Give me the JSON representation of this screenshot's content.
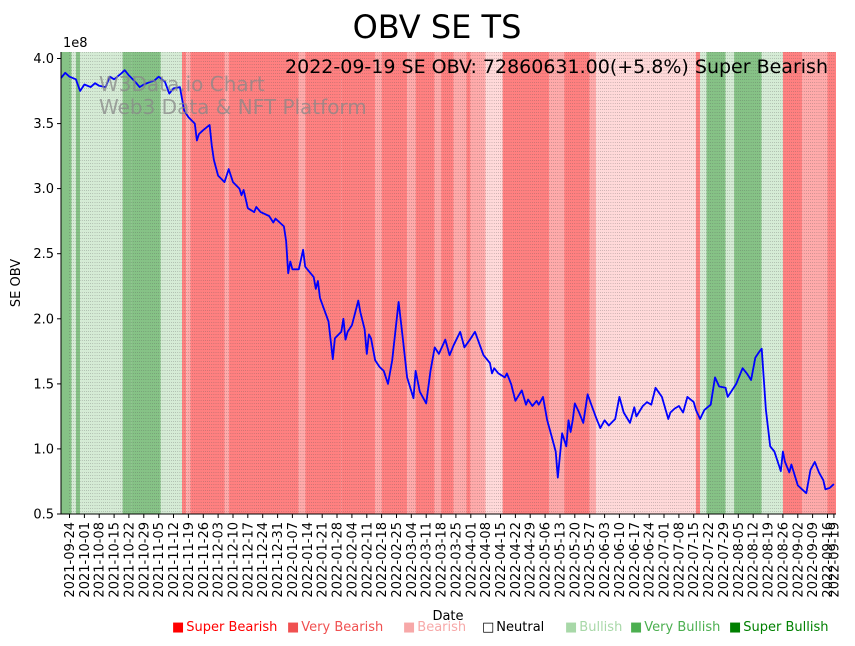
{
  "chart_data": {
    "type": "line",
    "title": "OBV SE TS",
    "annotation": "2022-09-19 SE OBV: 72860631.00(+5.8%) Super Bearish",
    "watermark": [
      "W3Data.io Chart",
      "Web3 Data & NFT Platform"
    ],
    "xlabel": "Date",
    "ylabel": "SE OBV",
    "y_multiplier_label": "1e8",
    "ylim": [
      0.5,
      4.05
    ],
    "yticks": [
      "0.5",
      "1.0",
      "1.5",
      "2.0",
      "2.5",
      "3.0",
      "3.5",
      "4.0"
    ],
    "xlim": [
      "2021-09-20",
      "2022-09-20"
    ],
    "xticks": [
      "2021-09-24",
      "2021-10-01",
      "2021-10-08",
      "2021-10-15",
      "2021-10-22",
      "2021-10-29",
      "2021-11-05",
      "2021-11-12",
      "2021-11-19",
      "2021-11-26",
      "2021-12-03",
      "2021-12-10",
      "2021-12-17",
      "2021-12-24",
      "2021-12-31",
      "2022-01-07",
      "2022-01-14",
      "2022-01-21",
      "2022-01-28",
      "2022-02-04",
      "2022-02-11",
      "2022-02-18",
      "2022-02-25",
      "2022-03-04",
      "2022-03-11",
      "2022-03-18",
      "2022-03-25",
      "2022-04-01",
      "2022-04-08",
      "2022-04-15",
      "2022-04-22",
      "2022-04-29",
      "2022-05-06",
      "2022-05-13",
      "2022-05-20",
      "2022-05-27",
      "2022-06-03",
      "2022-06-10",
      "2022-06-17",
      "2022-06-24",
      "2022-07-01",
      "2022-07-08",
      "2022-07-15",
      "2022-07-22",
      "2022-07-29",
      "2022-08-05",
      "2022-08-12",
      "2022-08-19",
      "2022-08-26",
      "2022-09-02",
      "2022-09-09",
      "2022-09-16",
      "2022-09-19"
    ],
    "grid": "vertical dotted",
    "series": [
      {
        "color": "#0000ff",
        "points": [
          [
            "2021-09-20",
            3.85
          ],
          [
            "2021-09-22",
            3.89
          ],
          [
            "2021-09-24",
            3.86
          ],
          [
            "2021-09-27",
            3.84
          ],
          [
            "2021-09-29",
            3.75
          ],
          [
            "2021-10-01",
            3.8
          ],
          [
            "2021-10-04",
            3.78
          ],
          [
            "2021-10-06",
            3.81
          ],
          [
            "2021-10-08",
            3.79
          ],
          [
            "2021-10-11",
            3.78
          ],
          [
            "2021-10-13",
            3.86
          ],
          [
            "2021-10-15",
            3.84
          ],
          [
            "2021-10-18",
            3.88
          ],
          [
            "2021-10-20",
            3.91
          ],
          [
            "2021-10-22",
            3.87
          ],
          [
            "2021-10-25",
            3.82
          ],
          [
            "2021-10-27",
            3.78
          ],
          [
            "2021-10-29",
            3.8
          ],
          [
            "2021-11-01",
            3.82
          ],
          [
            "2021-11-03",
            3.83
          ],
          [
            "2021-11-05",
            3.86
          ],
          [
            "2021-11-08",
            3.82
          ],
          [
            "2021-11-10",
            3.73
          ],
          [
            "2021-11-12",
            3.77
          ],
          [
            "2021-11-15",
            3.78
          ],
          [
            "2021-11-17",
            3.6
          ],
          [
            "2021-11-19",
            3.55
          ],
          [
            "2021-11-22",
            3.5
          ],
          [
            "2021-11-23",
            3.37
          ],
          [
            "2021-11-24",
            3.42
          ],
          [
            "2021-11-26",
            3.45
          ],
          [
            "2021-11-29",
            3.49
          ],
          [
            "2021-11-30",
            3.33
          ],
          [
            "2021-12-01",
            3.22
          ],
          [
            "2021-12-03",
            3.1
          ],
          [
            "2021-12-06",
            3.05
          ],
          [
            "2021-12-08",
            3.15
          ],
          [
            "2021-12-10",
            3.05
          ],
          [
            "2021-12-13",
            3.0
          ],
          [
            "2021-12-14",
            2.95
          ],
          [
            "2021-12-15",
            2.99
          ],
          [
            "2021-12-17",
            2.85
          ],
          [
            "2021-12-20",
            2.82
          ],
          [
            "2021-12-21",
            2.86
          ],
          [
            "2021-12-23",
            2.82
          ],
          [
            "2021-12-27",
            2.79
          ],
          [
            "2021-12-29",
            2.74
          ],
          [
            "2021-12-30",
            2.77
          ],
          [
            "2022-01-03",
            2.71
          ],
          [
            "2022-01-04",
            2.6
          ],
          [
            "2022-01-05",
            2.35
          ],
          [
            "2022-01-06",
            2.44
          ],
          [
            "2022-01-07",
            2.38
          ],
          [
            "2022-01-10",
            2.38
          ],
          [
            "2022-01-12",
            2.53
          ],
          [
            "2022-01-13",
            2.4
          ],
          [
            "2022-01-17",
            2.32
          ],
          [
            "2022-01-18",
            2.23
          ],
          [
            "2022-01-19",
            2.29
          ],
          [
            "2022-01-20",
            2.16
          ],
          [
            "2022-01-24",
            1.98
          ],
          [
            "2022-01-26",
            1.69
          ],
          [
            "2022-01-27",
            1.85
          ],
          [
            "2022-01-30",
            1.9
          ],
          [
            "2022-01-31",
            2.0
          ],
          [
            "2022-02-01",
            1.84
          ],
          [
            "2022-02-02",
            1.9
          ],
          [
            "2022-02-04",
            1.95
          ],
          [
            "2022-02-07",
            2.14
          ],
          [
            "2022-02-08",
            2.05
          ],
          [
            "2022-02-10",
            1.92
          ],
          [
            "2022-02-11",
            1.73
          ],
          [
            "2022-02-12",
            1.88
          ],
          [
            "2022-02-13",
            1.85
          ],
          [
            "2022-02-15",
            1.68
          ],
          [
            "2022-02-17",
            1.63
          ],
          [
            "2022-02-19",
            1.6
          ],
          [
            "2022-02-21",
            1.5
          ],
          [
            "2022-02-23",
            1.68
          ],
          [
            "2022-02-26",
            2.13
          ],
          [
            "2022-02-28",
            1.85
          ],
          [
            "2022-03-02",
            1.55
          ],
          [
            "2022-03-05",
            1.39
          ],
          [
            "2022-03-06",
            1.6
          ],
          [
            "2022-03-08",
            1.44
          ],
          [
            "2022-03-11",
            1.35
          ],
          [
            "2022-03-13",
            1.6
          ],
          [
            "2022-03-15",
            1.78
          ],
          [
            "2022-03-17",
            1.73
          ],
          [
            "2022-03-20",
            1.84
          ],
          [
            "2022-03-22",
            1.72
          ],
          [
            "2022-03-24",
            1.8
          ],
          [
            "2022-03-27",
            1.9
          ],
          [
            "2022-03-29",
            1.78
          ],
          [
            "2022-04-01",
            1.85
          ],
          [
            "2022-04-03",
            1.9
          ],
          [
            "2022-04-07",
            1.72
          ],
          [
            "2022-04-10",
            1.66
          ],
          [
            "2022-04-11",
            1.58
          ],
          [
            "2022-04-12",
            1.62
          ],
          [
            "2022-04-14",
            1.58
          ],
          [
            "2022-04-17",
            1.55
          ],
          [
            "2022-04-18",
            1.58
          ],
          [
            "2022-04-20",
            1.5
          ],
          [
            "2022-04-22",
            1.37
          ],
          [
            "2022-04-25",
            1.45
          ],
          [
            "2022-04-27",
            1.34
          ],
          [
            "2022-04-28",
            1.38
          ],
          [
            "2022-04-30",
            1.33
          ],
          [
            "2022-05-02",
            1.37
          ],
          [
            "2022-05-03",
            1.34
          ],
          [
            "2022-05-05",
            1.4
          ],
          [
            "2022-05-07",
            1.22
          ],
          [
            "2022-05-09",
            1.1
          ],
          [
            "2022-05-11",
            0.98
          ],
          [
            "2022-05-12",
            0.78
          ],
          [
            "2022-05-14",
            1.12
          ],
          [
            "2022-05-16",
            1.02
          ],
          [
            "2022-05-17",
            1.22
          ],
          [
            "2022-05-18",
            1.13
          ],
          [
            "2022-05-19",
            1.22
          ],
          [
            "2022-05-20",
            1.35
          ],
          [
            "2022-05-22",
            1.28
          ],
          [
            "2022-05-24",
            1.2
          ],
          [
            "2022-05-26",
            1.42
          ],
          [
            "2022-05-28",
            1.33
          ],
          [
            "2022-05-30",
            1.24
          ],
          [
            "2022-06-01",
            1.16
          ],
          [
            "2022-06-03",
            1.22
          ],
          [
            "2022-06-05",
            1.18
          ],
          [
            "2022-06-08",
            1.23
          ],
          [
            "2022-06-10",
            1.4
          ],
          [
            "2022-06-12",
            1.28
          ],
          [
            "2022-06-15",
            1.2
          ],
          [
            "2022-06-17",
            1.32
          ],
          [
            "2022-06-18",
            1.25
          ],
          [
            "2022-06-21",
            1.33
          ],
          [
            "2022-06-23",
            1.36
          ],
          [
            "2022-06-25",
            1.34
          ],
          [
            "2022-06-27",
            1.47
          ],
          [
            "2022-06-30",
            1.4
          ],
          [
            "2022-07-03",
            1.23
          ],
          [
            "2022-07-04",
            1.28
          ],
          [
            "2022-07-06",
            1.31
          ],
          [
            "2022-07-08",
            1.33
          ],
          [
            "2022-07-10",
            1.28
          ],
          [
            "2022-07-12",
            1.4
          ],
          [
            "2022-07-15",
            1.36
          ],
          [
            "2022-07-16",
            1.3
          ],
          [
            "2022-07-18",
            1.23
          ],
          [
            "2022-07-20",
            1.3
          ],
          [
            "2022-07-23",
            1.34
          ],
          [
            "2022-07-25",
            1.55
          ],
          [
            "2022-07-27",
            1.48
          ],
          [
            "2022-07-30",
            1.47
          ],
          [
            "2022-07-31",
            1.4
          ],
          [
            "2022-08-02",
            1.45
          ],
          [
            "2022-08-04",
            1.5
          ],
          [
            "2022-08-07",
            1.62
          ],
          [
            "2022-08-09",
            1.58
          ],
          [
            "2022-08-11",
            1.53
          ],
          [
            "2022-08-13",
            1.7
          ],
          [
            "2022-08-15",
            1.75
          ],
          [
            "2022-08-16",
            1.77
          ],
          [
            "2022-08-18",
            1.3
          ],
          [
            "2022-08-20",
            1.02
          ],
          [
            "2022-08-22",
            0.98
          ],
          [
            "2022-08-25",
            0.83
          ],
          [
            "2022-08-26",
            0.98
          ],
          [
            "2022-08-27",
            0.9
          ],
          [
            "2022-08-29",
            0.82
          ],
          [
            "2022-08-30",
            0.88
          ],
          [
            "2022-09-02",
            0.72
          ],
          [
            "2022-09-04",
            0.69
          ],
          [
            "2022-09-06",
            0.66
          ],
          [
            "2022-09-08",
            0.84
          ],
          [
            "2022-09-10",
            0.9
          ],
          [
            "2022-09-12",
            0.82
          ],
          [
            "2022-09-14",
            0.76
          ],
          [
            "2022-09-15",
            0.69
          ],
          [
            "2022-09-17",
            0.7
          ],
          [
            "2022-09-19",
            0.73
          ]
        ]
      }
    ],
    "background_bands": [
      [
        "2021-09-20",
        "2021-09-25",
        "Very Bullish"
      ],
      [
        "2021-09-25",
        "2021-09-27",
        "Bullish"
      ],
      [
        "2021-09-27",
        "2021-09-29",
        "Very Bullish"
      ],
      [
        "2021-09-29",
        "2021-10-19",
        "Bullish"
      ],
      [
        "2021-10-19",
        "2021-10-23",
        "Very Bullish"
      ],
      [
        "2021-10-23",
        "2021-11-03",
        "Very Bullish"
      ],
      [
        "2021-11-03",
        "2021-11-06",
        "Very Bullish"
      ],
      [
        "2021-11-06",
        "2021-11-16",
        "Bullish"
      ],
      [
        "2021-11-16",
        "2021-11-18",
        "Super Bearish"
      ],
      [
        "2021-11-18",
        "2021-11-20",
        "Bearish"
      ],
      [
        "2021-11-20",
        "2021-12-06",
        "Super Bearish"
      ],
      [
        "2021-12-06",
        "2021-12-08",
        "Bearish"
      ],
      [
        "2021-12-08",
        "2022-01-10",
        "Super Bearish"
      ],
      [
        "2022-01-10",
        "2022-01-13",
        "Bearish"
      ],
      [
        "2022-01-13",
        "2022-01-30",
        "Super Bearish"
      ],
      [
        "2022-01-30",
        "2022-02-15",
        "Super Bearish"
      ],
      [
        "2022-02-15",
        "2022-02-18",
        "Bearish"
      ],
      [
        "2022-02-18",
        "2022-03-02",
        "Super Bearish"
      ],
      [
        "2022-03-02",
        "2022-03-06",
        "Bearish"
      ],
      [
        "2022-03-06",
        "2022-03-15",
        "Super Bearish"
      ],
      [
        "2022-03-15",
        "2022-03-18",
        "Bearish"
      ],
      [
        "2022-03-18",
        "2022-03-24",
        "Super Bearish"
      ],
      [
        "2022-03-24",
        "2022-03-30",
        "Bearish"
      ],
      [
        "2022-03-30",
        "2022-04-01",
        "Super Bearish"
      ],
      [
        "2022-04-01",
        "2022-04-08",
        "Bearish"
      ],
      [
        "2022-04-08",
        "2022-04-16",
        "Neutral"
      ],
      [
        "2022-04-16",
        "2022-05-08",
        "Super Bearish"
      ],
      [
        "2022-05-08",
        "2022-05-15",
        "Bearish"
      ],
      [
        "2022-05-15",
        "2022-05-27",
        "Super Bearish"
      ],
      [
        "2022-05-27",
        "2022-05-30",
        "Bearish"
      ],
      [
        "2022-05-30",
        "2022-07-16",
        "Neutral"
      ],
      [
        "2022-07-16",
        "2022-07-18",
        "Super Bearish"
      ],
      [
        "2022-07-18",
        "2022-07-21",
        "Bullish"
      ],
      [
        "2022-07-21",
        "2022-07-30",
        "Very Bullish"
      ],
      [
        "2022-07-30",
        "2022-08-03",
        "Bullish"
      ],
      [
        "2022-08-03",
        "2022-08-16",
        "Very Bullish"
      ],
      [
        "2022-08-16",
        "2022-08-18",
        "Bullish"
      ],
      [
        "2022-08-18",
        "2022-08-26",
        "Bullish"
      ],
      [
        "2022-08-26",
        "2022-09-04",
        "Super Bearish"
      ],
      [
        "2022-09-04",
        "2022-09-16",
        "Bearish"
      ],
      [
        "2022-09-16",
        "2022-09-20",
        "Super Bearish"
      ]
    ],
    "band_colors": {
      "Super Bearish": "#ff8080",
      "Very Bearish": "#ff9999",
      "Bearish": "#ffaaaa",
      "Neutral": "#ffd9d9",
      "Bullish": "#d5ebd5",
      "Very Bullish": "#86c286"
    },
    "legend": {
      "placement": "bottom-right",
      "items": [
        {
          "label": "Super Bearish",
          "marker": "■",
          "color": "#ff0000"
        },
        {
          "label": "Very Bearish",
          "marker": "■",
          "color": "#f05050"
        },
        {
          "label": "Bearish",
          "marker": "■",
          "color": "#f7a8a8"
        },
        {
          "label": "Neutral",
          "marker": "□",
          "color": "#000000"
        },
        {
          "label": "Bullish",
          "marker": "■",
          "color": "#a8d8a8"
        },
        {
          "label": "Very Bullish",
          "marker": "■",
          "color": "#4caf50"
        },
        {
          "label": "Super Bullish",
          "marker": "■",
          "color": "#008000"
        }
      ]
    }
  }
}
